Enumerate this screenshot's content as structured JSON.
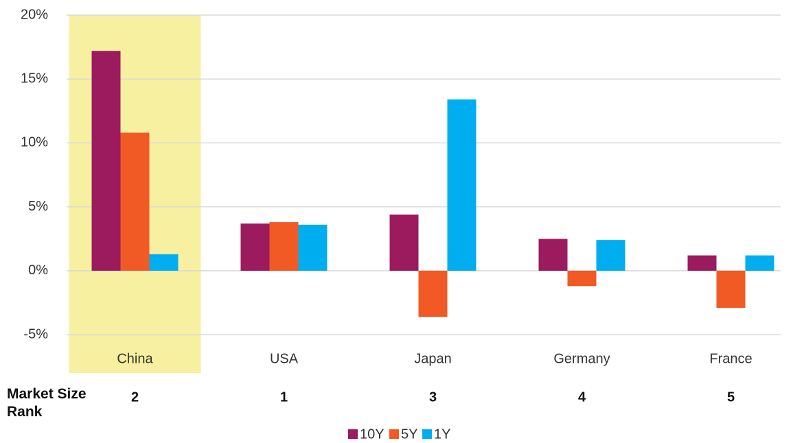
{
  "chart_data": {
    "type": "bar",
    "categories": [
      "China",
      "USA",
      "Japan",
      "Germany",
      "France"
    ],
    "series": [
      {
        "name": "10Y",
        "color": "#9b1b5e",
        "values": [
          17.2,
          3.7,
          4.4,
          2.5,
          1.2
        ]
      },
      {
        "name": "5Y",
        "color": "#f15a24",
        "values": [
          10.8,
          3.8,
          -3.6,
          -1.2,
          -2.9
        ]
      },
      {
        "name": "1Y",
        "color": "#00aeef",
        "values": [
          1.3,
          3.6,
          13.4,
          2.4,
          1.2
        ]
      }
    ],
    "ylim": [
      -8,
      20
    ],
    "yticks": [
      {
        "value": -5,
        "label": "-5%"
      },
      {
        "value": 0,
        "label": "0%"
      },
      {
        "value": 5,
        "label": "5%"
      },
      {
        "value": 10,
        "label": "10%"
      },
      {
        "value": 15,
        "label": "15%"
      },
      {
        "value": 20,
        "label": "20%"
      }
    ],
    "grid": true,
    "legend": "bottom",
    "highlight": {
      "category_index": 0,
      "color": "#f7f0a0"
    },
    "rank_label": "Market Size Rank",
    "rank_values": [
      2,
      1,
      3,
      4,
      5
    ]
  }
}
